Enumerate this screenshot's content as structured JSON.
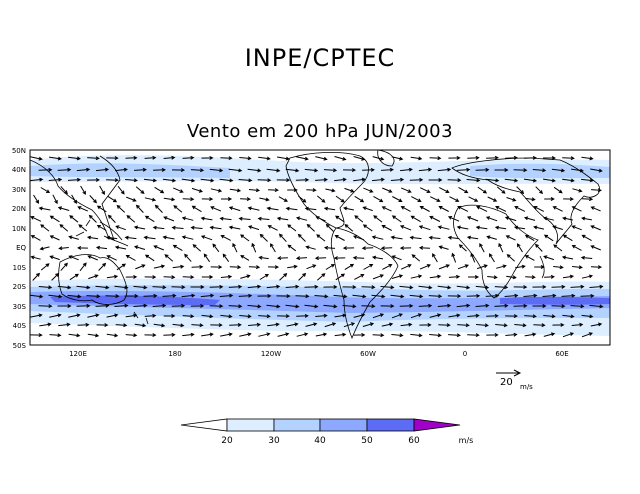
{
  "header": {
    "organization": "INPE/CPTEC"
  },
  "map": {
    "title": "Vento em 200 hPa JUN/2003",
    "lat_labels": [
      "50N",
      "40N",
      "30N",
      "20N",
      "10N",
      "EQ",
      "10S",
      "20S",
      "30S",
      "40S",
      "50S"
    ],
    "lon_labels": [
      "120E",
      "180",
      "120W",
      "60W",
      "0",
      "60E"
    ],
    "reference_vector": {
      "value": "20",
      "unit": "m/s"
    }
  },
  "colorbar": {
    "ticks": [
      "20",
      "30",
      "40",
      "50",
      "60"
    ],
    "unit": "m/s",
    "colors": [
      "#ffffff",
      "#dceeff",
      "#b4d2ff",
      "#8ca8ff",
      "#5c6cf4",
      "#a000c8"
    ]
  }
}
